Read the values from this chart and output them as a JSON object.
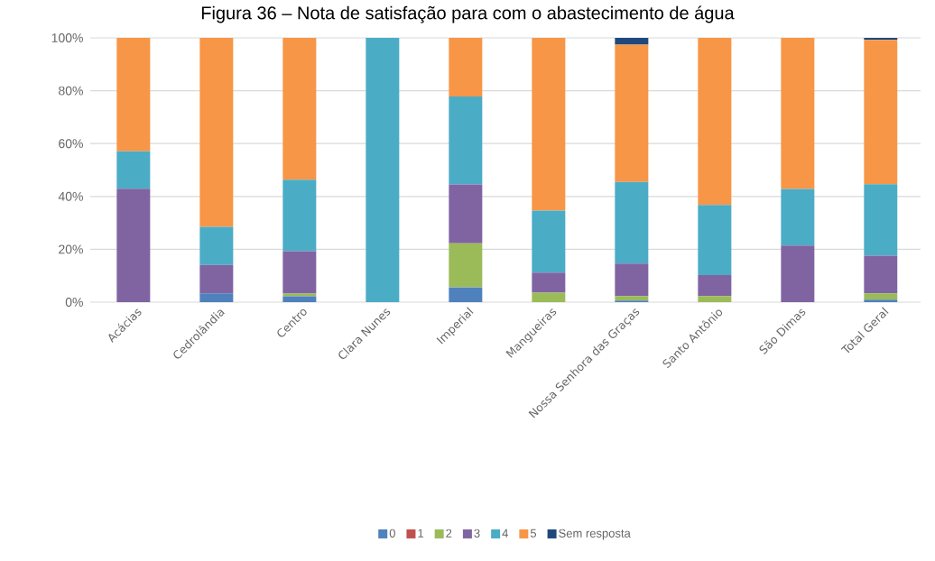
{
  "chart_data": {
    "type": "bar",
    "stacked": true,
    "title": "Figura 36 – Nota de satisfação para com o abastecimento de água",
    "categories": [
      "Acácias",
      "Cedrolândia",
      "Centro",
      "Clara Nunes",
      "Imperial",
      "Mangueiras",
      "Nossa Senhora das Graças",
      "Santo Antônio",
      "São Dimas",
      "Total Geral"
    ],
    "series": [
      {
        "name": "0",
        "color": "#4f81bd",
        "values": [
          0,
          3.3,
          2.2,
          0,
          5.6,
          0,
          0.6,
          0,
          0,
          0.9
        ]
      },
      {
        "name": "1",
        "color": "#c0504d",
        "values": [
          0,
          0,
          0,
          0,
          0,
          0,
          0,
          0,
          0,
          0
        ]
      },
      {
        "name": "2",
        "color": "#9bbb59",
        "values": [
          0,
          0,
          1.0,
          0,
          16.7,
          3.6,
          1.7,
          2.3,
          0,
          2.4
        ]
      },
      {
        "name": "3",
        "color": "#8064a2",
        "values": [
          42.9,
          10.8,
          16.1,
          0,
          22.2,
          7.6,
          12.3,
          7.9,
          21.4,
          14.3
        ]
      },
      {
        "name": "4",
        "color": "#4bacc6",
        "values": [
          14.2,
          14.4,
          27.0,
          100,
          33.3,
          23.4,
          30.9,
          26.6,
          21.4,
          27.0
        ]
      },
      {
        "name": "5",
        "color": "#f79646",
        "values": [
          42.9,
          71.5,
          53.7,
          0,
          22.2,
          65.4,
          51.9,
          63.2,
          57.2,
          54.6
        ]
      },
      {
        "name": "Sem resposta",
        "color": "#1f497d",
        "values": [
          0,
          0,
          0,
          0,
          0,
          0,
          2.6,
          0,
          0,
          0.8
        ]
      }
    ],
    "ylim": [
      0,
      100
    ],
    "yticks": [
      {
        "value": 0,
        "label": "0%"
      },
      {
        "value": 20,
        "label": "20%"
      },
      {
        "value": 40,
        "label": "40%"
      },
      {
        "value": 60,
        "label": "60%"
      },
      {
        "value": 80,
        "label": "80%"
      },
      {
        "value": 100,
        "label": "100%"
      }
    ],
    "grid": "y",
    "legend": "bottom"
  }
}
